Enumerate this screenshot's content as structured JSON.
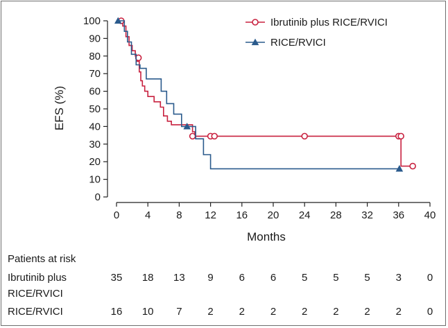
{
  "chart_data": {
    "type": "line",
    "subtype": "kaplan-meier",
    "title": "",
    "xlabel": "Months",
    "ylabel": "EFS (%)",
    "xlim": [
      0,
      40
    ],
    "ylim": [
      0,
      100
    ],
    "xticks": [
      0,
      4,
      8,
      12,
      16,
      20,
      24,
      28,
      32,
      36,
      40
    ],
    "yticks": [
      0,
      10,
      20,
      30,
      40,
      50,
      60,
      70,
      80,
      90,
      100
    ],
    "grid": false,
    "legend_position": "top-right",
    "series": [
      {
        "name": "Ibrutinib plus RICE/RVICI",
        "color": "#c8213f",
        "marker": "circle",
        "steps": [
          [
            0,
            100
          ],
          [
            0.8,
            97
          ],
          [
            1.2,
            91
          ],
          [
            1.6,
            86
          ],
          [
            2.0,
            83
          ],
          [
            2.4,
            80
          ],
          [
            2.6,
            77
          ],
          [
            2.9,
            71
          ],
          [
            3.1,
            66
          ],
          [
            3.3,
            63
          ],
          [
            3.6,
            60
          ],
          [
            4.0,
            57
          ],
          [
            4.8,
            54
          ],
          [
            5.6,
            51
          ],
          [
            6.0,
            46
          ],
          [
            6.5,
            43
          ],
          [
            7.0,
            41
          ],
          [
            9.3,
            41
          ],
          [
            9.7,
            37
          ],
          [
            10.0,
            34.5
          ],
          [
            36.3,
            34.5
          ],
          [
            36.3,
            17.5
          ],
          [
            37.8,
            17.5
          ]
        ],
        "censored": [
          [
            0.6,
            100
          ],
          [
            2.8,
            79
          ],
          [
            9.7,
            34.5
          ],
          [
            12.0,
            34.5
          ],
          [
            12.5,
            34.5
          ],
          [
            24.0,
            34.5
          ],
          [
            36.0,
            34.5
          ],
          [
            36.3,
            34.5
          ],
          [
            37.8,
            17.5
          ]
        ]
      },
      {
        "name": "RICE/RVICI",
        "color": "#2a5a8c",
        "marker": "triangle",
        "steps": [
          [
            0,
            100
          ],
          [
            1.0,
            94
          ],
          [
            1.4,
            88
          ],
          [
            1.9,
            81
          ],
          [
            2.5,
            75
          ],
          [
            3.0,
            73
          ],
          [
            3.8,
            67
          ],
          [
            5.7,
            60
          ],
          [
            6.4,
            53
          ],
          [
            7.3,
            47
          ],
          [
            8.3,
            40
          ],
          [
            10.1,
            33
          ],
          [
            11.1,
            24
          ],
          [
            12.0,
            16
          ],
          [
            36.3,
            16
          ]
        ],
        "censored": [
          [
            0.2,
            100
          ],
          [
            9.0,
            40
          ],
          [
            36.1,
            16
          ]
        ]
      }
    ],
    "risk_table": {
      "title": "Patients at risk",
      "time_points": [
        0,
        4,
        8,
        12,
        16,
        20,
        24,
        28,
        32,
        36,
        40
      ],
      "rows": [
        {
          "label_line1": "Ibrutinib plus",
          "label_line2": "RICE/RVICI",
          "values": [
            35,
            18,
            13,
            9,
            6,
            6,
            5,
            5,
            5,
            3,
            0
          ]
        },
        {
          "label_line1": "RICE/RVICI",
          "label_line2": "",
          "values": [
            16,
            10,
            7,
            2,
            2,
            2,
            2,
            2,
            2,
            2,
            0
          ]
        }
      ]
    }
  }
}
